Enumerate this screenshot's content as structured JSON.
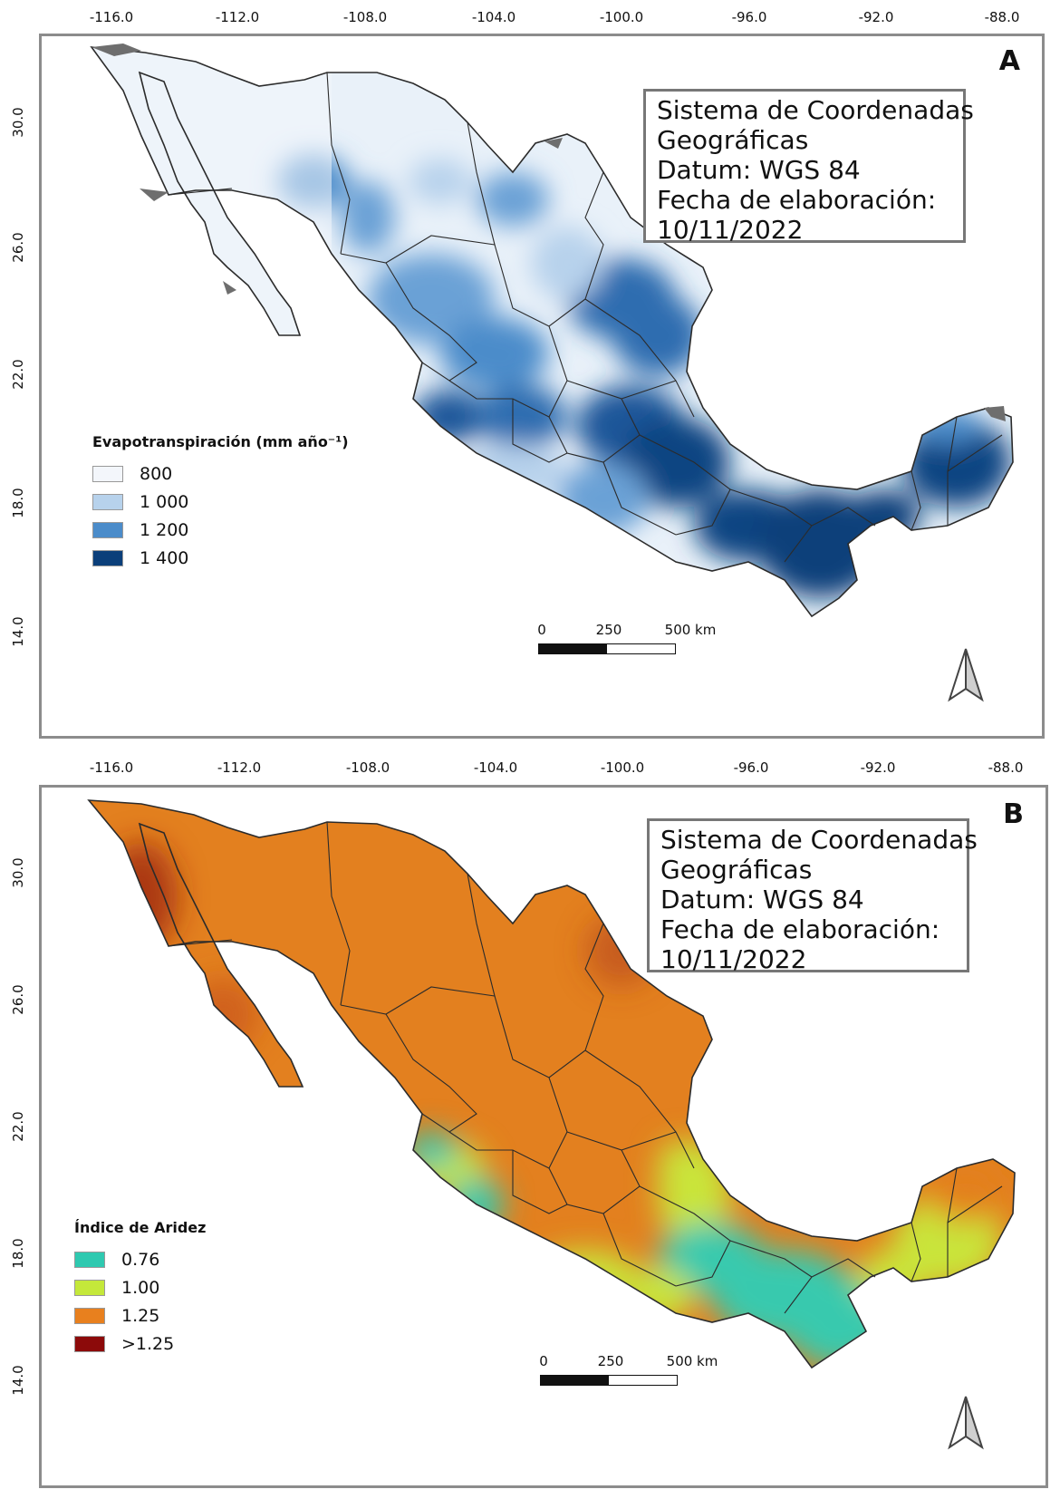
{
  "maps": [
    {
      "letter": "A",
      "top_ticks": [
        "-116.0",
        "-112.0",
        "-108.0",
        "-104.0",
        "-100.0",
        "-96.0",
        "-92.0",
        "-88.0"
      ],
      "left_ticks": [
        "30.0",
        "26.0",
        "22.0",
        "18.0",
        "14.0"
      ],
      "info": {
        "line1": "Sistema de Coordenadas",
        "line2": "Geográficas",
        "line3": "Datum: WGS 84",
        "line4": "Fecha de elaboración:",
        "line5": "10/11/2022"
      },
      "legend": {
        "title": "Evapotranspiración (mm año⁻¹)",
        "items": [
          {
            "label": "800",
            "color": "#f3f6fb"
          },
          {
            "label": "1 000",
            "color": "#b7d2ec"
          },
          {
            "label": "1 200",
            "color": "#4b8cca"
          },
          {
            "label": "1 400",
            "color": "#0b3f7a"
          }
        ]
      },
      "scale": {
        "l0": "0",
        "l1": "250",
        "l2": "500 km"
      },
      "colors": {
        "base": "#d6e5f4",
        "mid": "#6aa1d6",
        "dark": "#0f4582",
        "nodata": "#6e6e6e"
      }
    },
    {
      "letter": "B",
      "top_ticks": [
        "-116.0",
        "-112.0",
        "-108.0",
        "-104.0",
        "-100.0",
        "-96.0",
        "-92.0",
        "-88.0"
      ],
      "left_ticks": [
        "30.0",
        "26.0",
        "22.0",
        "18.0",
        "14.0"
      ],
      "info": {
        "line1": "Sistema de Coordenadas",
        "line2": "Geográficas",
        "line3": "Datum: WGS 84",
        "line4": "Fecha de elaboración:",
        "line5": "10/11/2022"
      },
      "legend": {
        "title": "Índice de Aridez",
        "items": [
          {
            "label": "0.76",
            "color": "#2ec9b0"
          },
          {
            "label": "1.00",
            "color": "#c4e83a"
          },
          {
            "label": "1.25",
            "color": "#e8801e"
          },
          {
            "label": ">1.25",
            "color": "#8c0a0a"
          }
        ]
      },
      "scale": {
        "l0": "0",
        "l1": "250",
        "l2": "500 km"
      },
      "colors": {
        "base": "#e3801f",
        "wet": "#37c9ae",
        "semi": "#c9e43a",
        "dry": "#9e2410"
      }
    }
  ]
}
